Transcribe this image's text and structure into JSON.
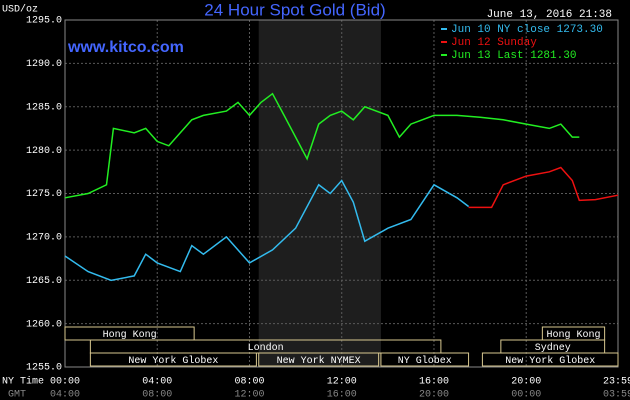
{
  "chart_data": {
    "type": "line",
    "title": "24 Hour Spot Gold (Bid)",
    "timestamp": "June 13, 2016 21:38",
    "watermark": "www.kitco.com",
    "y_label": "USD/oz",
    "x_row_labels": [
      "NY Time",
      "GMT"
    ],
    "xlim": [
      0,
      23.98
    ],
    "ylim": [
      1255,
      1295
    ],
    "yticks": [
      {
        "value": 1255,
        "label": "1255.0"
      },
      {
        "value": 1260,
        "label": "1260.0"
      },
      {
        "value": 1265,
        "label": "1265.0"
      },
      {
        "value": 1270,
        "label": "1270.0"
      },
      {
        "value": 1275,
        "label": "1275.0"
      },
      {
        "value": 1280,
        "label": "1280.0"
      },
      {
        "value": 1285,
        "label": "1285.0"
      },
      {
        "value": 1290,
        "label": "1290.0"
      },
      {
        "value": 1295,
        "label": "1295.0"
      }
    ],
    "xticks": [
      {
        "value": 0,
        "label": "00:00"
      },
      {
        "value": 4,
        "label": "04:00"
      },
      {
        "value": 8,
        "label": "08:00"
      },
      {
        "value": 12,
        "label": "12:00"
      },
      {
        "value": 16,
        "label": "16:00"
      },
      {
        "value": 20,
        "label": "20:00"
      },
      {
        "value": 23.98,
        "label": "23:59"
      }
    ],
    "gmt_ticks": [
      "04:00",
      "08:00",
      "12:00",
      "16:00",
      "20:00",
      "00:00",
      "03:59"
    ],
    "grid": true,
    "shaded_region": [
      8.4,
      13.7
    ],
    "series": [
      {
        "name": "Jun 10 NY close 1273.30",
        "color": "#33bbee",
        "x": [
          0,
          1,
          2,
          3,
          3.5,
          4,
          5,
          5.5,
          6,
          7,
          8,
          9,
          10,
          11,
          11.5,
          12,
          12.5,
          13,
          14,
          15,
          16,
          17,
          17.5
        ],
        "values": [
          1267.8,
          1266,
          1265,
          1265.5,
          1268,
          1267,
          1266,
          1269,
          1268,
          1270,
          1267,
          1268.5,
          1271,
          1276,
          1275,
          1276.5,
          1274,
          1269.5,
          1271,
          1272,
          1276,
          1274.5,
          1273.5
        ]
      },
      {
        "name": "Jun 12 Sunday",
        "color": "#ee1111",
        "x": [
          17.5,
          18.5,
          19,
          20,
          21,
          21.5,
          22,
          22.3,
          23,
          23.98
        ],
        "values": [
          1273.4,
          1273.4,
          1276,
          1277,
          1277.5,
          1278,
          1276.5,
          1274.2,
          1274.3,
          1274.8
        ]
      },
      {
        "name": "Jun 13 Last 1281.30",
        "color": "#22ee22",
        "x": [
          0,
          1,
          1.8,
          2.1,
          3,
          3.5,
          4,
          4.5,
          5,
          5.5,
          6,
          7,
          7.5,
          8,
          8.5,
          9,
          9.5,
          10,
          10.5,
          11,
          11.5,
          12,
          12.5,
          13,
          14,
          14.5,
          15,
          16,
          17,
          18,
          19,
          20,
          21,
          21.5,
          22,
          22.3
        ],
        "values": [
          1274.5,
          1275,
          1276,
          1282.5,
          1282,
          1282.5,
          1281,
          1280.5,
          1282,
          1283.5,
          1284,
          1284.5,
          1285.5,
          1284,
          1285.5,
          1286.5,
          1284,
          1281.5,
          1279,
          1283,
          1284,
          1284.5,
          1283.5,
          1285,
          1284,
          1281.5,
          1283,
          1284,
          1284,
          1283.8,
          1283.5,
          1283,
          1282.5,
          1283,
          1281.5,
          1281.5
        ]
      }
    ],
    "sessions": [
      {
        "label": "Hong Kong",
        "start": 0,
        "end": 5.6,
        "row": 0
      },
      {
        "label": "Hong Kong",
        "start": 20.7,
        "end": 23.4,
        "row": 0
      },
      {
        "label": "London",
        "start": 1.1,
        "end": 16.3,
        "row": 1
      },
      {
        "label": "Sydney",
        "start": 18.9,
        "end": 23.4,
        "row": 1
      },
      {
        "label": "New York Globex",
        "start": 1.1,
        "end": 8.3,
        "row": 2
      },
      {
        "label": "New York NYMEX",
        "start": 8.4,
        "end": 13.6,
        "row": 2
      },
      {
        "label": "NY Globex",
        "start": 13.7,
        "end": 17.5,
        "row": 2
      },
      {
        "label": "New York Globex",
        "start": 18.1,
        "end": 23.98,
        "row": 2
      }
    ]
  }
}
